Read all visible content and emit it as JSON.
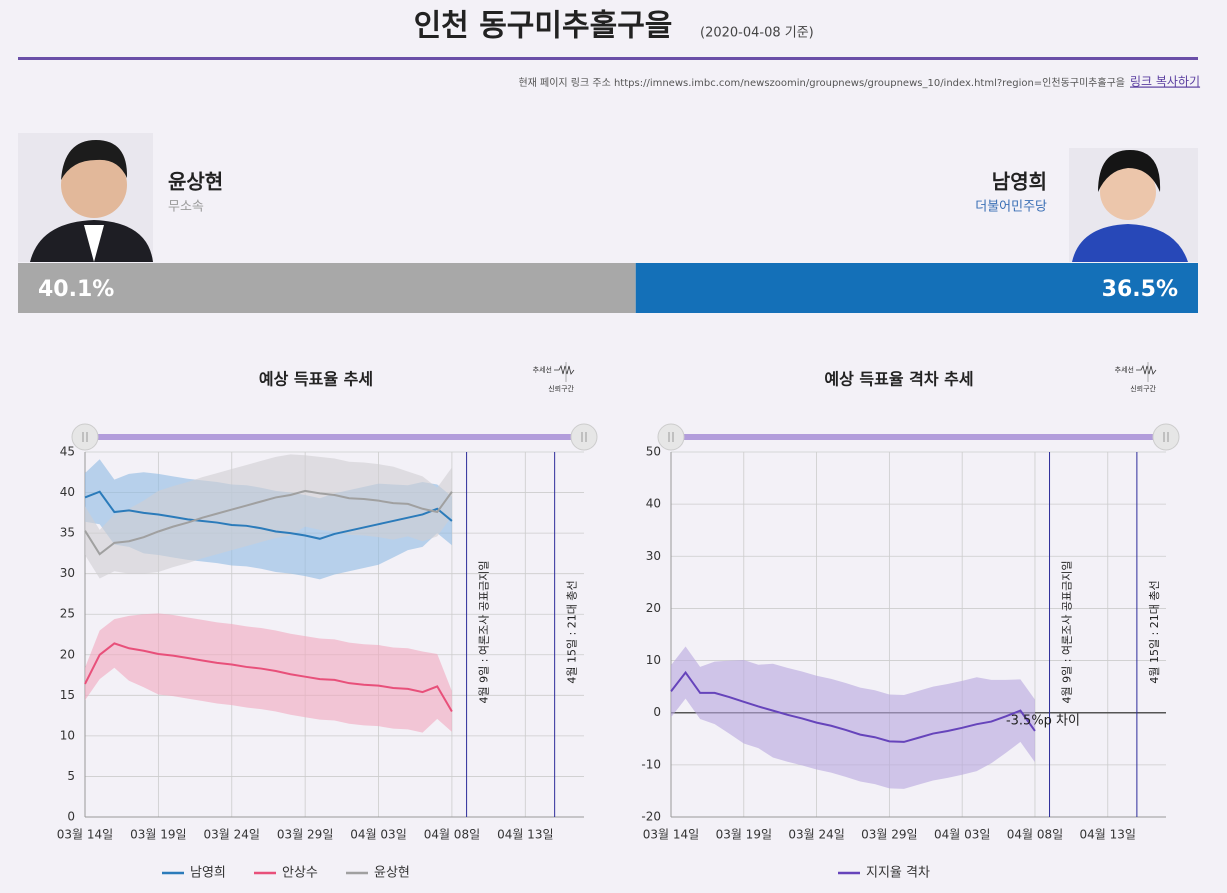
{
  "header": {
    "title": "인천 동구미추홀구을",
    "date_note": "(2020-04-08 기준)",
    "link_prefix": "현재 페이지 링크 주소 https://imnews.imbc.com/newszoomin/groupnews/groupnews_10/index.html?region=인천동구미추홀구을",
    "copy_link": "링크 복사하기"
  },
  "candidates": [
    {
      "name": "윤상현",
      "party": "무소속",
      "share": 40.1,
      "share_label": "40.1%",
      "color": "#a8a8a8",
      "party_color": "#9a9a9a"
    },
    {
      "name": "남영희",
      "party": "더불어민주당",
      "share": 36.5,
      "share_label": "36.5%",
      "color": "#1470b8",
      "party_color": "#3a6fb5"
    }
  ],
  "chart_data": [
    {
      "type": "line",
      "title": "예상 득표율 추세",
      "legend_note": [
        "추세선",
        "신뢰구간"
      ],
      "x": [
        "03-14",
        "03-15",
        "03-16",
        "03-17",
        "03-18",
        "03-19",
        "03-20",
        "03-21",
        "03-22",
        "03-23",
        "03-24",
        "03-25",
        "03-26",
        "03-27",
        "03-28",
        "03-29",
        "03-30",
        "03-31",
        "04-01",
        "04-02",
        "04-03",
        "04-04",
        "04-05",
        "04-06",
        "04-07",
        "04-08"
      ],
      "xlim": [
        "03-14",
        "04-17"
      ],
      "xticks": [
        {
          "value": "03-14",
          "label": "03월 14일"
        },
        {
          "value": "03-19",
          "label": "03월 19일"
        },
        {
          "value": "03-24",
          "label": "03월 24일"
        },
        {
          "value": "03-29",
          "label": "03월 29일"
        },
        {
          "value": "04-03",
          "label": "04월 03일"
        },
        {
          "value": "04-08",
          "label": "04월 08일"
        },
        {
          "value": "04-13",
          "label": "04월 13일"
        }
      ],
      "ylim": [
        0,
        45
      ],
      "yticks": [
        0,
        5,
        10,
        15,
        20,
        25,
        30,
        35,
        40,
        45
      ],
      "grid": true,
      "series": [
        {
          "name": "남영희",
          "color": "#2b7bba",
          "band_color": "#8fbbe2",
          "values": [
            39.4,
            40.1,
            37.6,
            37.8,
            37.5,
            37.3,
            37.0,
            36.7,
            36.5,
            36.3,
            36.0,
            35.9,
            35.6,
            35.2,
            35.0,
            34.7,
            34.3,
            34.9,
            35.3,
            35.7,
            36.1,
            36.5,
            36.9,
            37.3,
            38.0,
            36.5
          ],
          "upper": [
            42.4,
            44.1,
            41.6,
            42.3,
            42.5,
            42.3,
            42.0,
            41.7,
            41.5,
            41.3,
            41.0,
            40.9,
            40.6,
            40.2,
            40.0,
            39.7,
            39.3,
            39.9,
            40.3,
            40.7,
            41.1,
            41.0,
            40.9,
            41.3,
            41.0,
            39.5
          ],
          "lower": [
            36.4,
            36.1,
            33.6,
            33.3,
            32.5,
            32.3,
            32.0,
            31.7,
            31.5,
            31.3,
            31.0,
            30.9,
            30.6,
            30.2,
            30.0,
            29.7,
            29.3,
            29.9,
            30.3,
            30.7,
            31.1,
            32.0,
            32.9,
            33.3,
            35.0,
            33.5
          ]
        },
        {
          "name": "안상수",
          "color": "#e8507a",
          "band_color": "#f1a9be",
          "values": [
            16.4,
            20.0,
            21.4,
            20.8,
            20.5,
            20.1,
            19.9,
            19.6,
            19.3,
            19.0,
            18.8,
            18.5,
            18.3,
            18.0,
            17.6,
            17.3,
            17.0,
            16.9,
            16.5,
            16.3,
            16.2,
            15.9,
            15.8,
            15.4,
            16.1,
            13.0
          ],
          "upper": [
            18.4,
            23.0,
            24.4,
            24.8,
            25.0,
            25.1,
            24.9,
            24.6,
            24.3,
            24.0,
            23.8,
            23.5,
            23.3,
            23.0,
            22.6,
            22.3,
            22.0,
            21.9,
            21.5,
            21.3,
            21.2,
            20.9,
            20.8,
            20.4,
            20.1,
            15.5
          ],
          "lower": [
            14.4,
            17.0,
            18.4,
            16.8,
            16.0,
            15.1,
            14.9,
            14.6,
            14.3,
            14.0,
            13.8,
            13.5,
            13.3,
            13.0,
            12.6,
            12.3,
            12.0,
            11.9,
            11.5,
            11.3,
            11.2,
            10.9,
            10.8,
            10.4,
            12.1,
            10.5
          ]
        },
        {
          "name": "윤상현",
          "color": "#a0a0a0",
          "band_color": "#d0cfd2",
          "values": [
            35.3,
            32.4,
            33.8,
            34.0,
            34.5,
            35.2,
            35.8,
            36.3,
            36.9,
            37.4,
            37.9,
            38.4,
            38.9,
            39.4,
            39.7,
            40.2,
            39.9,
            39.7,
            39.3,
            39.2,
            39.0,
            38.7,
            38.6,
            38.0,
            37.6,
            40.1
          ],
          "upper": [
            38.3,
            35.4,
            37.3,
            38.0,
            39.0,
            40.2,
            40.8,
            41.3,
            41.9,
            42.4,
            42.9,
            43.4,
            43.9,
            44.4,
            44.7,
            44.6,
            44.4,
            44.2,
            43.8,
            43.7,
            43.5,
            43.2,
            42.6,
            42.0,
            40.6,
            43.1
          ],
          "lower": [
            32.3,
            29.4,
            30.3,
            30.0,
            30.0,
            30.2,
            30.8,
            31.3,
            31.9,
            32.4,
            32.9,
            33.4,
            33.9,
            34.4,
            34.7,
            35.8,
            35.4,
            35.2,
            34.8,
            34.7,
            34.5,
            34.2,
            34.6,
            34.0,
            34.6,
            37.1
          ]
        }
      ],
      "markers": [
        {
          "x": "04-09",
          "label": "4월 9일 : 여론조사 공표금지일"
        },
        {
          "x": "04-15",
          "label": "4월 15일 : 21대 총선"
        }
      ]
    },
    {
      "type": "line",
      "title": "예상 득표율 격차 추세",
      "legend_note": [
        "추세선",
        "신뢰구간"
      ],
      "x": [
        "03-14",
        "03-15",
        "03-16",
        "03-17",
        "03-18",
        "03-19",
        "03-20",
        "03-21",
        "03-22",
        "03-23",
        "03-24",
        "03-25",
        "03-26",
        "03-27",
        "03-28",
        "03-29",
        "03-30",
        "03-31",
        "04-01",
        "04-02",
        "04-03",
        "04-04",
        "04-05",
        "04-06",
        "04-07",
        "04-08"
      ],
      "xlim": [
        "03-14",
        "04-17"
      ],
      "xticks": [
        {
          "value": "03-14",
          "label": "03월 14일"
        },
        {
          "value": "03-19",
          "label": "03월 19일"
        },
        {
          "value": "03-24",
          "label": "03월 24일"
        },
        {
          "value": "03-29",
          "label": "03월 29일"
        },
        {
          "value": "04-03",
          "label": "04월 03일"
        },
        {
          "value": "04-08",
          "label": "04월 08일"
        },
        {
          "value": "04-13",
          "label": "04월 13일"
        }
      ],
      "ylim": [
        -20,
        50
      ],
      "yticks": [
        -20,
        -10,
        0,
        10,
        20,
        30,
        40,
        50
      ],
      "grid": true,
      "series": [
        {
          "name": "지지율 격차",
          "color": "#6644bb",
          "band_color": "#b7a6de",
          "values": [
            4.1,
            7.7,
            3.8,
            3.8,
            3.0,
            2.1,
            1.2,
            0.4,
            -0.4,
            -1.1,
            -1.9,
            -2.5,
            -3.3,
            -4.2,
            -4.7,
            -5.5,
            -5.6,
            -4.8,
            -4.0,
            -3.5,
            -2.9,
            -2.2,
            -1.7,
            -0.7,
            0.4,
            -3.5
          ],
          "upper": [
            9.1,
            12.7,
            8.8,
            9.8,
            10.0,
            10.1,
            9.2,
            9.4,
            8.6,
            7.9,
            7.1,
            6.5,
            5.7,
            4.8,
            4.3,
            3.5,
            3.4,
            4.2,
            5.0,
            5.5,
            6.1,
            6.8,
            6.3,
            6.3,
            6.4,
            2.5
          ],
          "lower": [
            -0.9,
            2.7,
            -1.2,
            -2.2,
            -4.0,
            -5.9,
            -6.8,
            -8.6,
            -9.4,
            -10.1,
            -10.9,
            -11.5,
            -12.3,
            -13.2,
            -13.7,
            -14.5,
            -14.6,
            -13.8,
            -13.0,
            -12.5,
            -11.9,
            -11.2,
            -9.7,
            -7.7,
            -5.6,
            -9.5
          ]
        }
      ],
      "markers": [
        {
          "x": "04-09",
          "label": "4월 9일 : 여론조사 공표금지일"
        },
        {
          "x": "04-15",
          "label": "4월 15일 : 21대 총선"
        }
      ],
      "annotation": "-3.5%p 차이"
    }
  ]
}
